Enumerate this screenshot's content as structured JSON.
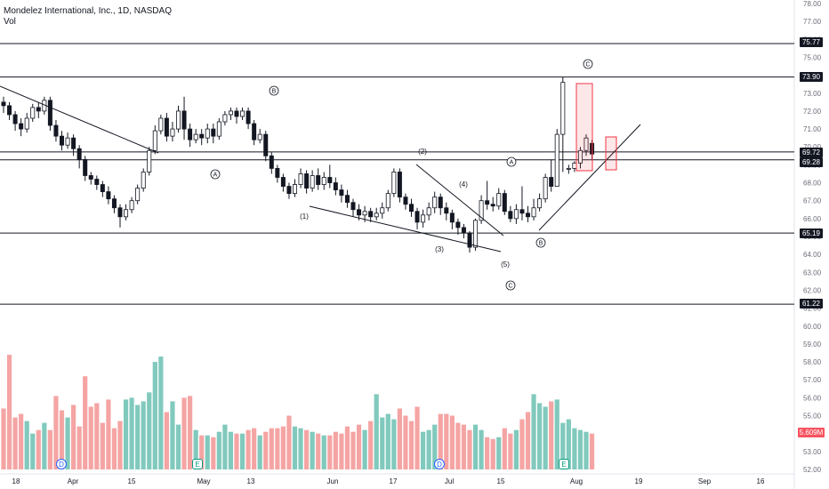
{
  "header": {
    "title": "Mondelez International, Inc., 1D, NASDAQ",
    "volume_label": "Vol"
  },
  "colors": {
    "up": "#089981",
    "down": "#131722",
    "vol_up": "#81c9bd",
    "vol_down": "#f5a4a4",
    "box": "#f23645"
  },
  "chart_data": {
    "type": "candlestick",
    "price_axis": {
      "ticks": [
        "78.00",
        "77.00",
        "76.00",
        "75.00",
        "74.00",
        "73.00",
        "72.00",
        "71.00",
        "70.00",
        "69.00",
        "68.00",
        "67.00",
        "66.00",
        "65.00",
        "64.00",
        "63.00",
        "62.00",
        "61.00",
        "60.00",
        "59.00",
        "58.00",
        "57.00",
        "56.00",
        "55.00",
        "54.00",
        "53.00",
        "52.00"
      ],
      "ylim": [
        52,
        78
      ]
    },
    "time_axis": [
      "18",
      "Apr",
      "15",
      "May",
      "13",
      "Jun",
      "17",
      "Jul",
      "15",
      "Aug",
      "19",
      "Sep",
      "16"
    ],
    "price_levels": [
      75.77,
      73.9,
      69.72,
      69.28,
      65.19,
      61.22
    ],
    "price_level_labels": [
      "75.77",
      "73.90",
      "69.72",
      "69.28",
      "65.19",
      "61.22"
    ],
    "volume_label": "5.609M",
    "wave_labels": [
      "B",
      "A",
      "(1)",
      "(2)",
      "(3)",
      "(4)",
      "(5)",
      "C",
      "A",
      "B",
      "C"
    ],
    "events": [
      "D",
      "E",
      "D",
      "E"
    ],
    "candles": [
      [
        72.5,
        72.3,
        72.8,
        71.9
      ],
      [
        72.3,
        71.8,
        72.5,
        71.5
      ],
      [
        71.8,
        71.3,
        72.0,
        70.9
      ],
      [
        71.3,
        71.0,
        71.6,
        70.6
      ],
      [
        71.0,
        71.6,
        71.9,
        70.8
      ],
      [
        71.6,
        72.2,
        72.4,
        71.4
      ],
      [
        72.2,
        72.0,
        72.5,
        71.6
      ],
      [
        72.0,
        72.6,
        72.8,
        71.8
      ],
      [
        72.6,
        71.2,
        72.8,
        70.9
      ],
      [
        71.2,
        70.6,
        71.5,
        70.3
      ],
      [
        70.6,
        70.1,
        70.9,
        69.8
      ],
      [
        70.1,
        70.5,
        70.8,
        69.9
      ],
      [
        70.5,
        69.9,
        70.7,
        69.5
      ],
      [
        69.9,
        69.3,
        70.1,
        68.8
      ],
      [
        69.3,
        68.4,
        69.5,
        68.1
      ],
      [
        68.4,
        68.2,
        68.6,
        67.9
      ],
      [
        68.2,
        67.9,
        68.4,
        67.6
      ],
      [
        67.9,
        67.5,
        68.1,
        67.2
      ],
      [
        67.5,
        67.1,
        67.8,
        66.8
      ],
      [
        67.1,
        66.6,
        67.3,
        66.3
      ],
      [
        66.6,
        66.1,
        66.8,
        65.5
      ],
      [
        66.1,
        66.5,
        66.8,
        65.9
      ],
      [
        66.5,
        67.0,
        67.2,
        66.3
      ],
      [
        67.0,
        67.7,
        67.9,
        66.8
      ],
      [
        67.7,
        68.6,
        68.8,
        67.5
      ],
      [
        68.6,
        69.8,
        70.0,
        68.4
      ],
      [
        69.8,
        70.9,
        71.2,
        69.6
      ],
      [
        70.9,
        71.6,
        71.8,
        70.7
      ],
      [
        71.6,
        70.6,
        71.9,
        70.3
      ],
      [
        70.6,
        71.0,
        71.4,
        70.3
      ],
      [
        71.0,
        72.0,
        72.3,
        70.8
      ],
      [
        72.0,
        71.0,
        72.8,
        70.4
      ],
      [
        71.0,
        70.4,
        71.3,
        70.0
      ],
      [
        70.4,
        70.7,
        71.0,
        70.2
      ],
      [
        70.7,
        70.5,
        71.0,
        70.1
      ],
      [
        70.5,
        71.0,
        71.3,
        70.2
      ],
      [
        71.0,
        70.6,
        71.3,
        70.2
      ],
      [
        70.6,
        71.4,
        71.6,
        70.4
      ],
      [
        71.4,
        71.8,
        72.0,
        71.2
      ],
      [
        71.8,
        72.0,
        72.2,
        71.5
      ],
      [
        72.0,
        71.7,
        72.2,
        71.3
      ],
      [
        71.7,
        72.0,
        72.2,
        71.5
      ],
      [
        72.0,
        71.3,
        72.2,
        71.0
      ],
      [
        71.3,
        70.4,
        71.5,
        70.1
      ],
      [
        70.4,
        70.7,
        71.0,
        70.2
      ],
      [
        70.7,
        69.5,
        70.9,
        69.2
      ],
      [
        69.5,
        68.8,
        69.7,
        68.5
      ],
      [
        68.8,
        68.3,
        69.0,
        68.0
      ],
      [
        68.3,
        67.8,
        68.5,
        67.5
      ],
      [
        67.8,
        67.4,
        68.0,
        67.1
      ],
      [
        67.4,
        67.9,
        68.2,
        67.2
      ],
      [
        67.9,
        68.5,
        68.8,
        67.7
      ],
      [
        68.5,
        67.7,
        68.7,
        67.4
      ],
      [
        67.7,
        68.4,
        68.7,
        67.5
      ],
      [
        68.4,
        67.9,
        68.8,
        67.6
      ],
      [
        67.9,
        68.3,
        68.6,
        67.6
      ],
      [
        68.3,
        68.0,
        69.0,
        67.7
      ],
      [
        68.0,
        67.6,
        68.3,
        67.3
      ],
      [
        67.6,
        67.3,
        67.9,
        66.9
      ],
      [
        67.3,
        66.9,
        67.6,
        66.6
      ],
      [
        66.9,
        66.5,
        67.1,
        66.1
      ],
      [
        66.5,
        66.2,
        66.8,
        65.9
      ],
      [
        66.2,
        66.4,
        66.7,
        65.8
      ],
      [
        66.4,
        66.1,
        66.6,
        65.8
      ],
      [
        66.1,
        66.3,
        66.6,
        65.9
      ],
      [
        66.3,
        66.6,
        66.9,
        66.0
      ],
      [
        66.6,
        67.4,
        67.6,
        66.4
      ],
      [
        67.4,
        68.6,
        68.8,
        67.2
      ],
      [
        68.6,
        67.2,
        68.8,
        66.9
      ],
      [
        67.2,
        66.8,
        67.4,
        66.5
      ],
      [
        66.8,
        66.4,
        67.1,
        66.1
      ],
      [
        66.4,
        65.8,
        66.6,
        65.4
      ],
      [
        65.8,
        66.2,
        66.5,
        65.5
      ],
      [
        66.2,
        66.6,
        66.9,
        65.9
      ],
      [
        66.6,
        67.2,
        67.5,
        66.3
      ],
      [
        67.2,
        66.6,
        67.4,
        66.2
      ],
      [
        66.6,
        66.3,
        66.9,
        65.9
      ],
      [
        66.3,
        65.8,
        66.5,
        65.4
      ],
      [
        65.8,
        65.5,
        66.0,
        65.1
      ],
      [
        65.5,
        65.2,
        65.7,
        64.9
      ],
      [
        65.2,
        64.4,
        65.3,
        64.1
      ],
      [
        64.4,
        65.9,
        66.0,
        64.2
      ],
      [
        65.9,
        67.0,
        67.3,
        65.7
      ],
      [
        67.0,
        66.8,
        68.1,
        66.5
      ],
      [
        66.8,
        66.7,
        67.2,
        66.4
      ],
      [
        66.7,
        67.4,
        67.7,
        66.5
      ],
      [
        67.4,
        66.4,
        67.6,
        66.2
      ],
      [
        66.4,
        66.0,
        66.7,
        65.8
      ],
      [
        66.0,
        66.5,
        66.8,
        65.7
      ],
      [
        66.5,
        66.3,
        67.8,
        65.9
      ],
      [
        66.3,
        66.1,
        66.7,
        65.8
      ],
      [
        66.1,
        66.6,
        67.1,
        65.9
      ],
      [
        66.6,
        67.1,
        67.4,
        66.4
      ],
      [
        67.1,
        68.3,
        68.5,
        66.9
      ],
      [
        68.3,
        67.8,
        69.3,
        67.5
      ],
      [
        67.8,
        70.7,
        71.0,
        67.9
      ],
      [
        70.7,
        73.6,
        73.9,
        68.6
      ],
      [
        68.8,
        68.8,
        69.0,
        68.5
      ],
      [
        68.8,
        69.1,
        69.2,
        68.6
      ],
      [
        69.1,
        69.8,
        70.0,
        68.8
      ],
      [
        69.8,
        70.5,
        70.7,
        69.5
      ],
      [
        70.2,
        69.6,
        70.4,
        69.3
      ]
    ],
    "volume": [
      55.4,
      58.4,
      54.9,
      55.1,
      54.7,
      54.0,
      54.2,
      54.6,
      54.2,
      56.1,
      55.3,
      54.9,
      55.6,
      54.4,
      57.2,
      55.5,
      55.7,
      54.6,
      55.9,
      54.3,
      54.7,
      55.9,
      56.0,
      55.6,
      55.8,
      56.3,
      58.0,
      58.3,
      55.2,
      55.8,
      54.5,
      56.0,
      56.1,
      54.2,
      53.9,
      53.9,
      53.8,
      54.1,
      54.5,
      54.1,
      54.0,
      54.0,
      54.2,
      54.3,
      53.9,
      54.1,
      54.3,
      54.3,
      54.4,
      55.0,
      54.4,
      54.3,
      54.2,
      54.1,
      54.0,
      53.9,
      53.9,
      54.1,
      54.0,
      54.4,
      54.1,
      54.5,
      54.2,
      54.7,
      56.2,
      54.9,
      55.1,
      54.8,
      55.4,
      55.0,
      54.7,
      55.5,
      54.1,
      54.2,
      54.5,
      55.1,
      55.1,
      55.0,
      54.6,
      54.5,
      54.2,
      54.5,
      54.2,
      53.8,
      53.7,
      53.8,
      54.3,
      54.0,
      54.2,
      54.8,
      55.2,
      56.2,
      55.7,
      55.5,
      55.8,
      55.9,
      54.6,
      54.8,
      54.3,
      54.2,
      54.1,
      54.0
    ]
  }
}
